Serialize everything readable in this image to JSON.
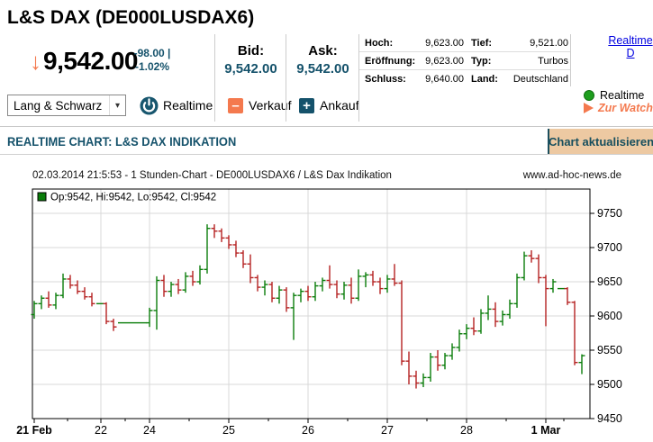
{
  "header": {
    "title": "L&S DAX (DE000LUSDAX6)",
    "arrow": "↓",
    "price": "9,542.00",
    "change": "-98.00 |",
    "change_pct": "-1.02%",
    "bid_label": "Bid:",
    "bid_value": "9,542.00",
    "ask_label": "Ask:",
    "ask_value": "9,542.00",
    "stats": [
      {
        "label": "Hoch:",
        "value": "9,623.00",
        "label2": "Tief:",
        "value2": "9,521.00"
      },
      {
        "label": "Eröffnung:",
        "value": "9,623.00",
        "label2": "Typ:",
        "value2": "Turbos"
      },
      {
        "label": "Schluss:",
        "value": "9,640.00",
        "label2": "Land:",
        "value2": "Deutschland"
      }
    ],
    "realtime_link_line1": "Realtime",
    "realtime_link_line2": "D",
    "realtime_indicator": "Realtime",
    "watchlist_link": "Zur Watchl",
    "exchange_select": "Lang & Schwarz",
    "select_caret": "▾",
    "realtime_button": "Realtime",
    "sell_icon": "–",
    "sell_button": "Verkauf",
    "buy_icon": "+",
    "buy_button": "Ankauf"
  },
  "strip": {
    "title": "REALTIME CHART: L&S DAX INDIKATION",
    "refresh_button": "Chart aktualisieren"
  },
  "chart_header": {
    "left": "02.03.2014 21:5:53 - 1 Stunden-Chart - DE000LUSDAX6 / L&S Dax Indikation",
    "right": "www.ad-hoc-news.de"
  },
  "chart_data": {
    "type": "ohlc-bar",
    "title": "1 Stunden-Chart DE000LUSDAX6 / L&S Dax Indikation",
    "legend": "Op:9542, Hi:9542, Lo:9542, Cl:9542",
    "up_color": "#0a7d0a",
    "down_color": "#b52222",
    "grid_color": "#d9d9d9",
    "ylim": [
      9450,
      9785
    ],
    "y_ticks": [
      9450,
      9500,
      9550,
      9600,
      9650,
      9700,
      9750
    ],
    "x_labels": [
      {
        "label": "21 Feb",
        "i": 0,
        "bold": true,
        "grid": false
      },
      {
        "label": "22",
        "i": 9.25,
        "bold": false,
        "grid": true
      },
      {
        "label": "24",
        "i": 16,
        "bold": false,
        "grid": true
      },
      {
        "label": "25",
        "i": 27,
        "bold": false,
        "grid": true
      },
      {
        "label": "26",
        "i": 38,
        "bold": false,
        "grid": true
      },
      {
        "label": "27",
        "i": 49,
        "bold": false,
        "grid": true
      },
      {
        "label": "28",
        "i": 60,
        "bold": false,
        "grid": true
      },
      {
        "label": "1 Mar",
        "i": 71,
        "bold": true,
        "grid": true
      }
    ],
    "bars": [
      [
        9602,
        9622,
        9596,
        9618
      ],
      [
        9618,
        9630,
        9610,
        9626
      ],
      [
        9626,
        9636,
        9612,
        9616
      ],
      [
        9616,
        9634,
        9610,
        9630
      ],
      [
        9630,
        9662,
        9626,
        9654
      ],
      [
        9654,
        9660,
        9640,
        9645
      ],
      [
        9645,
        9652,
        9632,
        9636
      ],
      [
        9636,
        9642,
        9624,
        9628
      ],
      [
        9628,
        9634,
        9614,
        9618
      ],
      [
        9618,
        9618,
        9618,
        9618
      ],
      [
        9618,
        9620,
        9588,
        9592
      ],
      [
        9592,
        9596,
        9578,
        9584
      ],
      [
        9590,
        9590,
        9590,
        9590
      ],
      [
        9590,
        9590,
        9590,
        9590
      ],
      [
        9590,
        9590,
        9590,
        9590
      ],
      [
        9590,
        9590,
        9590,
        9590
      ],
      [
        9590,
        9612,
        9584,
        9608
      ],
      [
        9608,
        9658,
        9580,
        9652
      ],
      [
        9652,
        9660,
        9628,
        9636
      ],
      [
        9636,
        9650,
        9628,
        9646
      ],
      [
        9646,
        9654,
        9632,
        9638
      ],
      [
        9638,
        9664,
        9634,
        9658
      ],
      [
        9658,
        9666,
        9644,
        9650
      ],
      [
        9650,
        9674,
        9646,
        9668
      ],
      [
        9668,
        9734,
        9662,
        9728
      ],
      [
        9728,
        9734,
        9714,
        9724
      ],
      [
        9724,
        9728,
        9708,
        9714
      ],
      [
        9714,
        9718,
        9698,
        9704
      ],
      [
        9704,
        9710,
        9686,
        9692
      ],
      [
        9692,
        9696,
        9670,
        9676
      ],
      [
        9676,
        9690,
        9648,
        9656
      ],
      [
        9656,
        9660,
        9636,
        9642
      ],
      [
        9642,
        9652,
        9630,
        9646
      ],
      [
        9646,
        9650,
        9620,
        9626
      ],
      [
        9626,
        9644,
        9618,
        9638
      ],
      [
        9638,
        9642,
        9606,
        9612
      ],
      [
        9612,
        9634,
        9565,
        9630
      ],
      [
        9630,
        9640,
        9620,
        9636
      ],
      [
        9636,
        9644,
        9622,
        9628
      ],
      [
        9628,
        9650,
        9622,
        9644
      ],
      [
        9644,
        9656,
        9636,
        9652
      ],
      [
        9652,
        9674,
        9640,
        9646
      ],
      [
        9646,
        9652,
        9626,
        9632
      ],
      [
        9632,
        9650,
        9624,
        9645
      ],
      [
        9645,
        9656,
        9618,
        9626
      ],
      [
        9626,
        9668,
        9622,
        9658
      ],
      [
        9658,
        9664,
        9642,
        9660
      ],
      [
        9660,
        9666,
        9644,
        9650
      ],
      [
        9650,
        9656,
        9632,
        9640
      ],
      [
        9640,
        9660,
        9634,
        9654
      ],
      [
        9654,
        9676,
        9644,
        9648
      ],
      [
        9648,
        9652,
        9528,
        9534
      ],
      [
        9534,
        9548,
        9500,
        9512
      ],
      [
        9512,
        9520,
        9494,
        9502
      ],
      [
        9502,
        9516,
        9496,
        9510
      ],
      [
        9510,
        9546,
        9504,
        9540
      ],
      [
        9540,
        9550,
        9520,
        9528
      ],
      [
        9528,
        9546,
        9522,
        9542
      ],
      [
        9542,
        9560,
        9536,
        9554
      ],
      [
        9554,
        9580,
        9548,
        9574
      ],
      [
        9574,
        9588,
        9566,
        9582
      ],
      [
        9582,
        9598,
        9572,
        9578
      ],
      [
        9578,
        9610,
        9574,
        9604
      ],
      [
        9604,
        9630,
        9594,
        9610
      ],
      [
        9610,
        9620,
        9584,
        9592
      ],
      [
        9592,
        9608,
        9586,
        9602
      ],
      [
        9602,
        9624,
        9596,
        9618
      ],
      [
        9618,
        9662,
        9612,
        9656
      ],
      [
        9656,
        9694,
        9652,
        9688
      ],
      [
        9688,
        9696,
        9678,
        9684
      ],
      [
        9684,
        9690,
        9648,
        9656
      ],
      [
        9656,
        9660,
        9585,
        9640
      ],
      [
        9640,
        9654,
        9634,
        9650
      ],
      [
        9640,
        9640,
        9640,
        9640
      ],
      [
        9640,
        9642,
        9616,
        9620
      ],
      [
        9620,
        9622,
        9528,
        9532
      ],
      [
        9532,
        9544,
        9515,
        9542
      ]
    ]
  }
}
